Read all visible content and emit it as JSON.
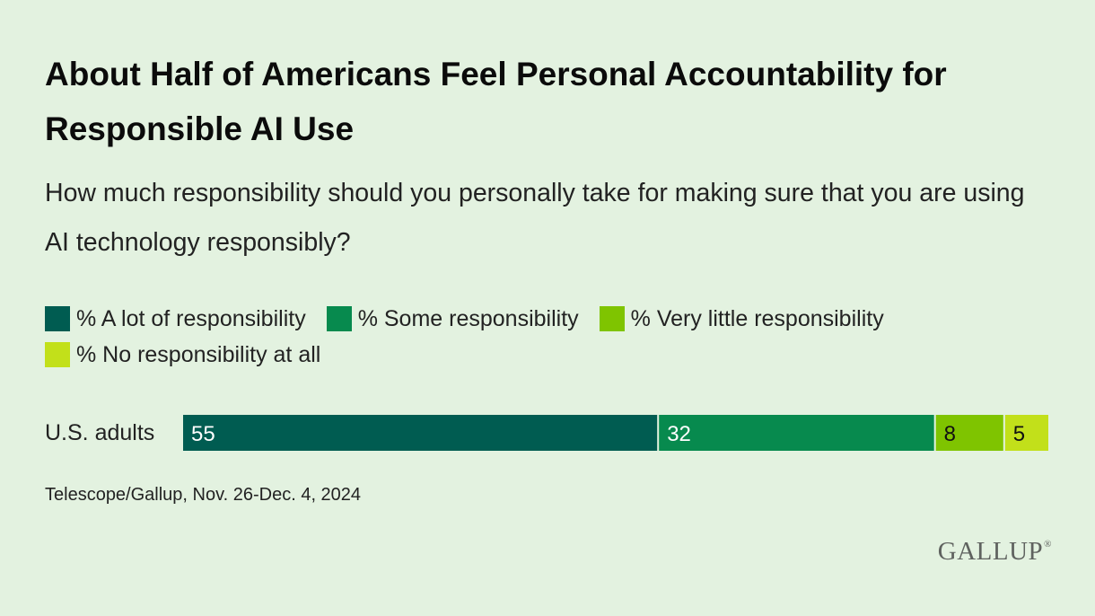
{
  "title": "About Half of Americans Feel Personal Accountability for Responsible AI Use",
  "subtitle": "How much responsibility should you personally take for making sure that you are using AI technology responsibly?",
  "source": "Telescope/Gallup, Nov. 26-Dec. 4, 2024",
  "brand": {
    "name": "GALLUP",
    "mark": "®"
  },
  "colors": {
    "background": "#e3f2e0",
    "a_lot": "#005c51",
    "some": "#078a4e",
    "very_little": "#7fc400",
    "none": "#c2e01a"
  },
  "chart_data": {
    "type": "bar",
    "orientation": "horizontal",
    "stacked": true,
    "categories": [
      "U.S. adults"
    ],
    "xlim": [
      0,
      100
    ],
    "legend_position": "top",
    "grid": false,
    "series": [
      {
        "name": "% A lot of responsibility",
        "values": [
          55
        ],
        "color": "#005c51",
        "label_color": "#ffffff"
      },
      {
        "name": "% Some responsibility",
        "values": [
          32
        ],
        "color": "#078a4e",
        "label_color": "#ffffff"
      },
      {
        "name": "% Very little responsibility",
        "values": [
          8
        ],
        "color": "#7fc400",
        "label_color": "#111111"
      },
      {
        "name": "% No responsibility at all",
        "values": [
          5
        ],
        "color": "#c2e01a",
        "label_color": "#111111"
      }
    ]
  }
}
